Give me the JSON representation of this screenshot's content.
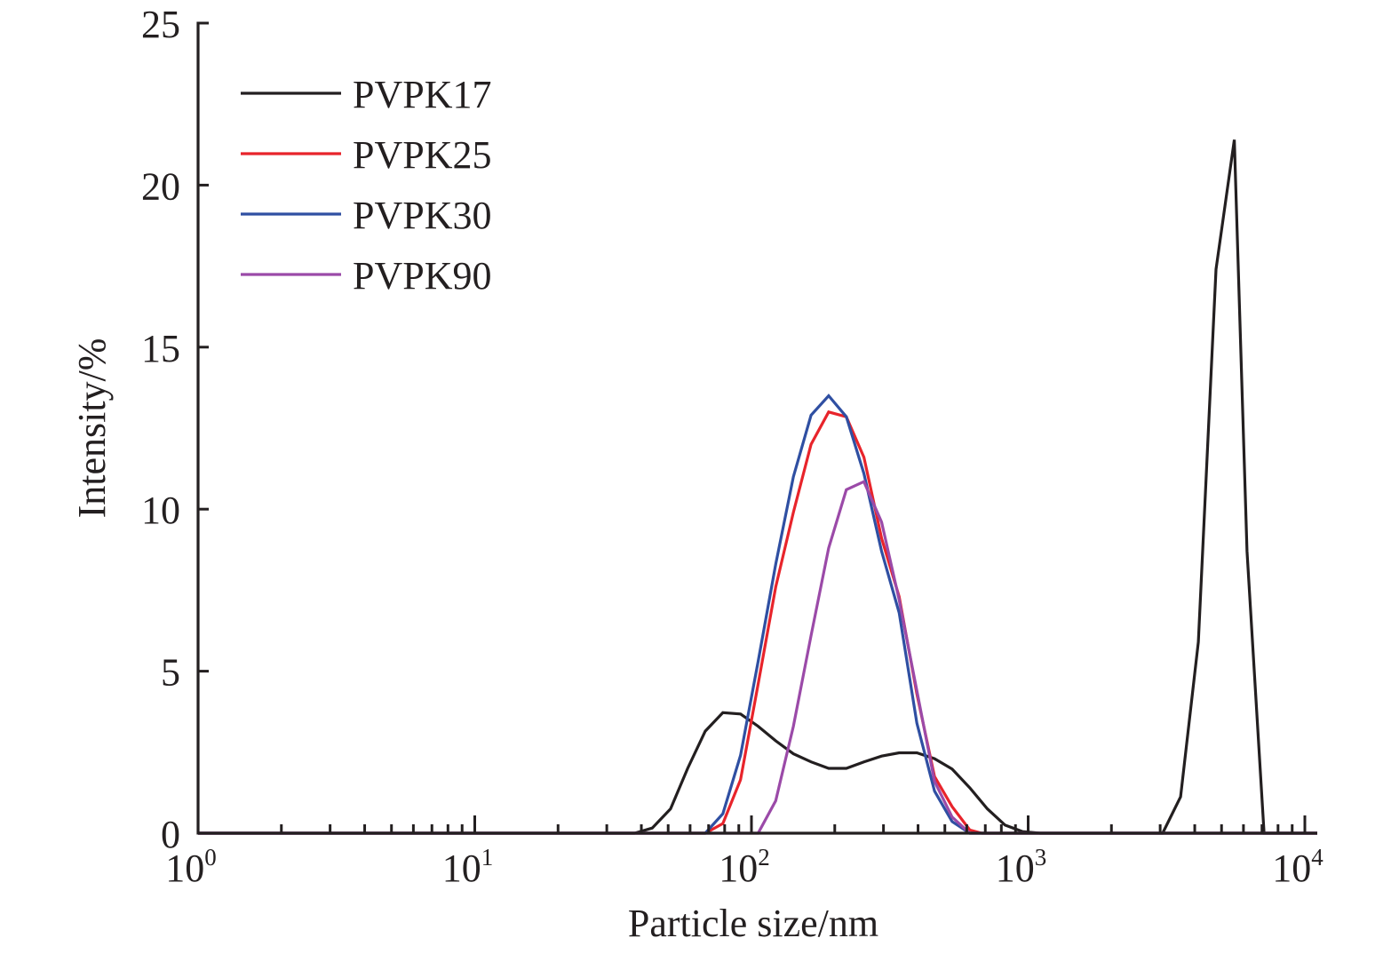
{
  "chart_data": {
    "type": "line",
    "title": "",
    "xlabel": "Particle size/nm",
    "ylabel": "Intensity/%",
    "xscale": "log",
    "xlim": [
      1,
      10000
    ],
    "ylim": [
      0,
      25
    ],
    "grid": false,
    "legend_position": "top-left",
    "x_ticks": [
      {
        "value": 1,
        "base": "10",
        "exp": "0"
      },
      {
        "value": 10,
        "base": "10",
        "exp": "1"
      },
      {
        "value": 100,
        "base": "10",
        "exp": "2"
      },
      {
        "value": 1000,
        "base": "10",
        "exp": "3"
      },
      {
        "value": 10000,
        "base": "10",
        "exp": "4"
      }
    ],
    "y_ticks": [
      {
        "value": 0,
        "label": "0"
      },
      {
        "value": 5,
        "label": "5"
      },
      {
        "value": 10,
        "label": "10"
      },
      {
        "value": 15,
        "label": "15"
      },
      {
        "value": 20,
        "label": "20"
      },
      {
        "value": 25,
        "label": "25"
      }
    ],
    "series": [
      {
        "name": "PVPK17",
        "color": "#231f20",
        "x": [
          1,
          37.8,
          43.8,
          51.0,
          58.8,
          68.1,
          78.8,
          91.3,
          105.7,
          122.4,
          141.8,
          164.2,
          190.1,
          220.2,
          255.0,
          295.3,
          342.0,
          396.1,
          458.7,
          531.2,
          615.1,
          712.4,
          825.0,
          955.4,
          1106,
          3000,
          3062,
          3556,
          4121,
          4775,
          5560,
          6180,
          7124,
          12000
        ],
        "y": [
          0,
          0,
          0.16,
          0.75,
          2.0,
          3.15,
          3.72,
          3.68,
          3.3,
          2.85,
          2.45,
          2.2,
          2.0,
          2.0,
          2.2,
          2.38,
          2.48,
          2.48,
          2.3,
          1.98,
          1.4,
          0.75,
          0.25,
          0.05,
          0,
          0,
          0,
          1.12,
          5.9,
          17.4,
          21.4,
          8.7,
          0,
          0
        ]
      },
      {
        "name": "PVPK25",
        "color": "#e8242b",
        "x": [
          1,
          68.1,
          78.8,
          91.3,
          105.7,
          122.4,
          141.8,
          164.2,
          190.1,
          220.2,
          255.0,
          295.3,
          342.0,
          396.1,
          458.7,
          531.2,
          615.1,
          680,
          12000
        ],
        "y": [
          0,
          0,
          0.3,
          1.65,
          4.6,
          7.6,
          9.9,
          12.0,
          13.0,
          12.85,
          11.6,
          9.1,
          7.3,
          4.3,
          1.75,
          0.82,
          0.1,
          0,
          0
        ]
      },
      {
        "name": "PVPK30",
        "color": "#2f4fa2",
        "x": [
          1,
          68.1,
          78.8,
          91.3,
          105.7,
          122.4,
          141.8,
          164.2,
          190.1,
          220.2,
          255.0,
          295.3,
          342.0,
          396.1,
          458.7,
          531.2,
          615.1,
          12000
        ],
        "y": [
          0,
          0,
          0.6,
          2.4,
          5.3,
          8.3,
          11.0,
          12.9,
          13.5,
          12.85,
          11.1,
          8.7,
          6.8,
          3.4,
          1.3,
          0.36,
          0,
          0
        ]
      },
      {
        "name": "PVPK90",
        "color": "#9b4aa8",
        "x": [
          1,
          105.7,
          122.4,
          141.8,
          164.2,
          190.1,
          220.2,
          255.0,
          295.3,
          342.0,
          396.1,
          458.7,
          531.2,
          615.1,
          12000
        ],
        "y": [
          0,
          0,
          1.0,
          3.3,
          6.1,
          8.8,
          10.6,
          10.85,
          9.6,
          7.2,
          4.4,
          1.6,
          0.5,
          0,
          0
        ]
      }
    ]
  }
}
